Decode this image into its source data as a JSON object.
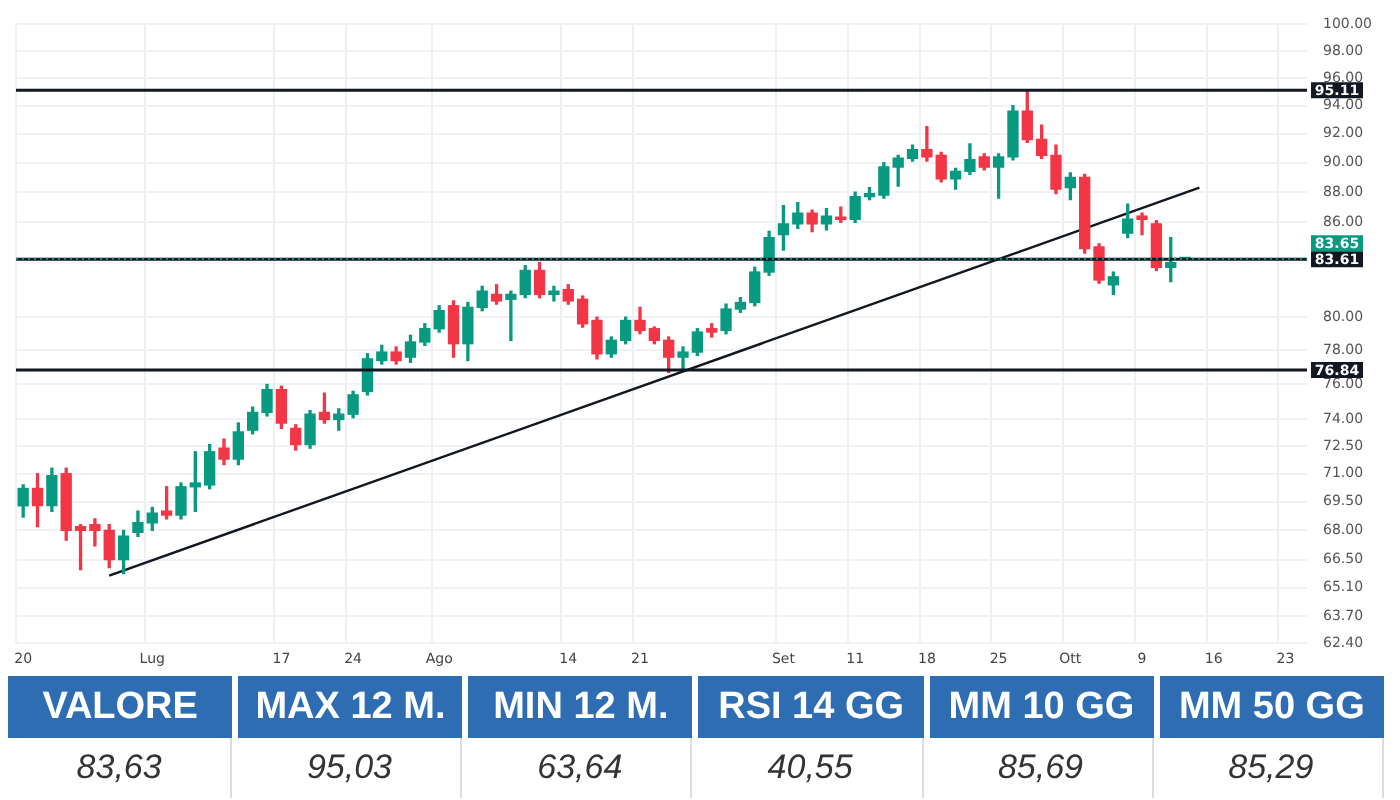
{
  "chart_data": [
    {
      "type": "candlestick",
      "log": "y",
      "grid": true,
      "tick_labels": "xy",
      "categories": [
        "20",
        null,
        null,
        null,
        null,
        null,
        null,
        null,
        null,
        "Lug",
        null,
        null,
        null,
        null,
        null,
        null,
        null,
        null,
        "17",
        null,
        null,
        null,
        null,
        "24",
        null,
        null,
        null,
        null,
        null,
        "Ago",
        null,
        null,
        null,
        null,
        null,
        null,
        null,
        null,
        "14",
        null,
        null,
        null,
        null,
        "21",
        null,
        null,
        null,
        null,
        null,
        null,
        null,
        null,
        null,
        "Set",
        null,
        null,
        null,
        null,
        "11",
        null,
        null,
        null,
        null,
        "18",
        null,
        null,
        null,
        null,
        "25",
        null,
        null,
        null,
        null,
        "Ott",
        null,
        null,
        null,
        null,
        "9",
        null,
        null,
        null,
        null,
        "16",
        null,
        null,
        null,
        null,
        "23",
        null
      ],
      "ohlc": [
        [
          69.29,
          70.4,
          68.7,
          70.21
        ],
        [
          70.21,
          71.0,
          68.2,
          69.3
        ],
        [
          69.3,
          71.3,
          69.0,
          70.9
        ],
        [
          71.0,
          71.3,
          67.5,
          68.0
        ],
        [
          68.2,
          68.3,
          66.0,
          68.0
        ],
        [
          68.3,
          68.6,
          67.2,
          68.0
        ],
        [
          68.0,
          68.3,
          66.1,
          66.5
        ],
        [
          66.5,
          68.0,
          65.8,
          67.7
        ],
        [
          67.9,
          69.0,
          67.7,
          68.4
        ],
        [
          68.4,
          69.2,
          68.0,
          68.9
        ],
        [
          69.0,
          70.3,
          68.6,
          68.8
        ],
        [
          68.8,
          70.5,
          68.6,
          70.3
        ],
        [
          70.3,
          72.2,
          69.0,
          70.5
        ],
        [
          70.4,
          72.6,
          70.2,
          72.2
        ],
        [
          72.4,
          72.9,
          71.5,
          71.8
        ],
        [
          71.8,
          73.8,
          71.5,
          73.3
        ],
        [
          73.4,
          74.7,
          73.2,
          74.4
        ],
        [
          74.4,
          76.0,
          74.2,
          75.7
        ],
        [
          75.7,
          75.9,
          73.5,
          73.8
        ],
        [
          73.5,
          73.7,
          72.3,
          72.6
        ],
        [
          72.6,
          74.5,
          72.4,
          74.3
        ],
        [
          74.4,
          75.5,
          73.8,
          74.0
        ],
        [
          74.0,
          74.6,
          73.4,
          74.3
        ],
        [
          74.3,
          75.6,
          74.1,
          75.4
        ],
        [
          75.6,
          77.8,
          75.4,
          77.5
        ],
        [
          77.4,
          78.3,
          77.2,
          77.9
        ],
        [
          77.9,
          78.2,
          77.2,
          77.4
        ],
        [
          77.6,
          78.9,
          77.3,
          78.5
        ],
        [
          78.5,
          79.6,
          78.3,
          79.3
        ],
        [
          79.3,
          80.7,
          79.1,
          80.4
        ],
        [
          80.7,
          81.0,
          77.6,
          78.4
        ],
        [
          78.4,
          80.9,
          77.4,
          80.6
        ],
        [
          80.6,
          81.9,
          80.4,
          81.6
        ],
        [
          81.4,
          82.0,
          80.8,
          81.0
        ],
        [
          81.1,
          81.6,
          78.6,
          81.4
        ],
        [
          81.4,
          83.2,
          81.2,
          82.9
        ],
        [
          82.9,
          83.4,
          81.2,
          81.4
        ],
        [
          81.4,
          81.9,
          81.0,
          81.6
        ],
        [
          81.7,
          82.0,
          80.8,
          81.0
        ],
        [
          81.1,
          81.3,
          79.4,
          79.6
        ],
        [
          79.8,
          80.0,
          77.5,
          77.8
        ],
        [
          77.8,
          78.8,
          77.6,
          78.6
        ],
        [
          78.6,
          80.0,
          78.4,
          79.8
        ],
        [
          79.8,
          80.6,
          79.0,
          79.2
        ],
        [
          79.3,
          79.4,
          78.4,
          78.6
        ],
        [
          78.6,
          78.8,
          76.7,
          77.6
        ],
        [
          77.6,
          78.2,
          76.9,
          77.9
        ],
        [
          77.9,
          79.3,
          77.7,
          79.1
        ],
        [
          79.3,
          79.6,
          78.8,
          79.1
        ],
        [
          79.2,
          80.8,
          79.0,
          80.5
        ],
        [
          80.5,
          81.2,
          80.3,
          80.9
        ],
        [
          80.9,
          83.1,
          80.7,
          82.8
        ],
        [
          82.8,
          85.4,
          82.6,
          85.0
        ],
        [
          85.2,
          87.1,
          84.2,
          85.9
        ],
        [
          85.9,
          87.3,
          85.6,
          86.6
        ],
        [
          86.6,
          86.8,
          85.4,
          85.9
        ],
        [
          85.9,
          86.9,
          85.5,
          86.4
        ],
        [
          86.3,
          87.0,
          86.0,
          86.2
        ],
        [
          86.2,
          88.0,
          86.0,
          87.7
        ],
        [
          87.7,
          88.3,
          87.5,
          87.9
        ],
        [
          87.8,
          90.0,
          87.6,
          89.7
        ],
        [
          89.7,
          90.5,
          88.4,
          90.3
        ],
        [
          90.3,
          91.2,
          90.1,
          90.9
        ],
        [
          90.9,
          92.5,
          90.1,
          90.4
        ],
        [
          90.5,
          90.7,
          88.7,
          88.9
        ],
        [
          88.9,
          89.6,
          88.2,
          89.4
        ],
        [
          89.4,
          91.3,
          89.2,
          90.2
        ],
        [
          90.4,
          90.6,
          89.5,
          89.7
        ],
        [
          89.7,
          90.6,
          87.6,
          90.4
        ],
        [
          90.4,
          94.0,
          90.2,
          93.6
        ],
        [
          93.6,
          95.0,
          91.4,
          91.6
        ],
        [
          91.6,
          92.6,
          90.3,
          90.5
        ],
        [
          90.5,
          91.2,
          87.9,
          88.2
        ],
        [
          88.3,
          89.3,
          87.5,
          89.0
        ],
        [
          89.0,
          89.2,
          84.0,
          84.3
        ],
        [
          84.4,
          84.6,
          82.1,
          82.3
        ],
        [
          82.0,
          82.8,
          81.4,
          82.5
        ],
        [
          85.3,
          87.2,
          85.0,
          86.2
        ],
        [
          86.4,
          86.6,
          85.2,
          86.2
        ],
        [
          85.9,
          86.1,
          82.9,
          83.1
        ],
        [
          83.1,
          85.0,
          82.2,
          83.4
        ],
        [
          83.6,
          83.7,
          83.6,
          83.65
        ],
        null,
        null,
        null,
        null,
        null,
        null,
        null,
        null
      ],
      "colors": [
        "#089981",
        "#f23645",
        "#089981",
        "#f23645",
        "#f23645",
        "#f23645",
        "#f23645",
        "#089981",
        "#089981",
        "#089981",
        "#f23645",
        "#089981",
        "#089981",
        "#089981",
        "#f23645",
        "#089981",
        "#089981",
        "#089981",
        "#f23645",
        "#f23645",
        "#089981",
        "#f23645",
        "#089981",
        "#089981",
        "#089981",
        "#089981",
        "#f23645",
        "#089981",
        "#089981",
        "#089981",
        "#f23645",
        "#089981",
        "#089981",
        "#f23645",
        "#089981",
        "#089981",
        "#f23645",
        "#089981",
        "#f23645",
        "#f23645",
        "#f23645",
        "#089981",
        "#089981",
        "#f23645",
        "#f23645",
        "#f23645",
        "#089981",
        "#089981",
        "#f23645",
        "#089981",
        "#089981",
        "#089981",
        "#089981",
        "#089981",
        "#089981",
        "#f23645",
        "#089981",
        "#f23645",
        "#089981",
        "#089981",
        "#089981",
        "#089981",
        "#089981",
        "#f23645",
        "#f23645",
        "#089981",
        "#089981",
        "#f23645",
        "#089981",
        "#089981",
        "#f23645",
        "#f23645",
        "#f23645",
        "#089981",
        "#f23645",
        "#f23645",
        "#089981",
        "#089981",
        "#f23645",
        "#f23645",
        "#089981",
        "#089981",
        null,
        null,
        null,
        null,
        null,
        null,
        null,
        null
      ],
      "series": [
        {
          "type": "line",
          "color": "#131722",
          "values": [
            null,
            null,
            null,
            null,
            null,
            null,
            65.7,
            null,
            null,
            null,
            null,
            null,
            null,
            null,
            null,
            null,
            null,
            null,
            null,
            null,
            null,
            null,
            null,
            null,
            null,
            null,
            null,
            null,
            null,
            null,
            null,
            null,
            null,
            null,
            null,
            null,
            null,
            null,
            null,
            null,
            null,
            null,
            null,
            null,
            null,
            null,
            null,
            null,
            null,
            null,
            null,
            null,
            null,
            null,
            null,
            null,
            null,
            null,
            null,
            null,
            null,
            null,
            null,
            null,
            null,
            null,
            null,
            null,
            null,
            null,
            null,
            null,
            null,
            null,
            null,
            null,
            null,
            null,
            null,
            null,
            null,
            null,
            88.3,
            null,
            null,
            null,
            null,
            null,
            null,
            null
          ]
        }
      ],
      "ylim": [
        62.4,
        100
      ],
      "yticks": [
        {
          "value": 100,
          "label": "100.00"
        },
        {
          "value": 98,
          "label": "98.00"
        },
        {
          "value": 96,
          "label": "96.00"
        },
        {
          "value": 94,
          "label": "94.00"
        },
        {
          "value": 92,
          "label": "92.00"
        },
        {
          "value": 90,
          "label": "90.00"
        },
        {
          "value": 88,
          "label": "88.00"
        },
        {
          "value": 86,
          "label": "86.00"
        },
        {
          "value": 80,
          "label": "80.00"
        },
        {
          "value": 78,
          "label": "78.00"
        },
        {
          "value": 76,
          "label": "76.00"
        },
        {
          "value": 74,
          "label": "74.00"
        },
        {
          "value": 72.5,
          "label": "72.50"
        },
        {
          "value": 71,
          "label": "71.00"
        },
        {
          "value": 69.5,
          "label": "69.50"
        },
        {
          "value": 68,
          "label": "68.00"
        },
        {
          "value": 66.5,
          "label": "66.50"
        },
        {
          "value": 65.1,
          "label": "65.10"
        },
        {
          "value": 63.7,
          "label": "63.70"
        },
        {
          "value": 62.4,
          "label": "62.40"
        }
      ],
      "ref_lines": [
        {
          "axis": "y",
          "value": 95.11,
          "label": "95.11",
          "color": "#131722"
        },
        {
          "axis": "y",
          "value": 83.61,
          "label": "83.61",
          "color": "#131722"
        },
        {
          "axis": "y",
          "value": 76.84,
          "label": "76.84",
          "color": "#131722"
        },
        {
          "axis": "y",
          "value": 83.65,
          "label": "83.65",
          "color": "#089981",
          "line_style": "dotted"
        }
      ]
    },
    {
      "type": "other",
      "color": "#2f6db3",
      "categories": [
        "VALORE",
        "MAX 12 M.",
        "MIN 12 M.",
        "RSI 14 GG",
        "MM 10 GG",
        "MM 50 GG"
      ],
      "value_labels": [
        "83,63",
        "95,03",
        "63,64",
        "40,55",
        "85,69",
        "85,29"
      ]
    }
  ]
}
